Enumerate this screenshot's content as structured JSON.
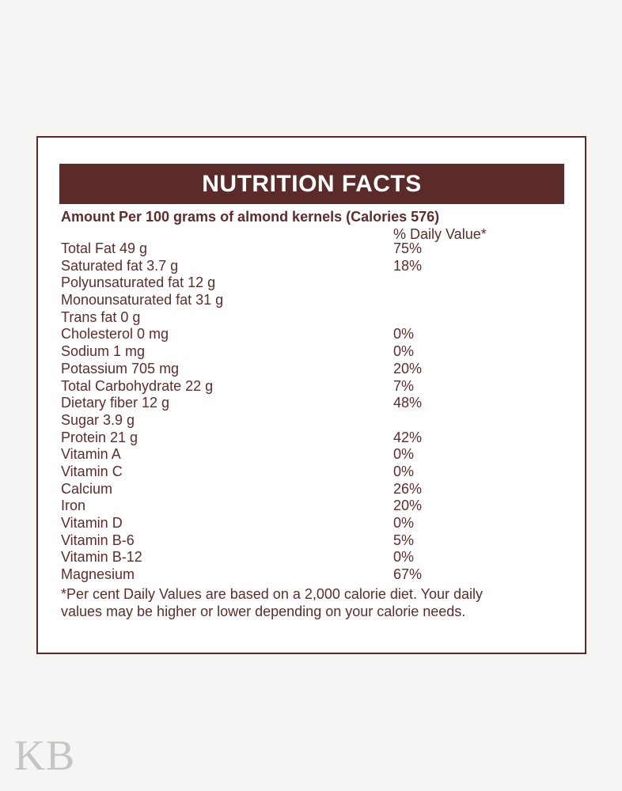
{
  "watermark": "KB",
  "colors": {
    "brand_brown": "#5a2b28",
    "text_brown": "#5e2d2a",
    "page_background": "#f5f5f4",
    "card_background": "#ffffff",
    "header_text": "#ffffff",
    "watermark_gray": "#c5c5c7"
  },
  "label": {
    "title": "NUTRITION FACTS",
    "amount_line": "Amount Per 100 grams of almond kernels (Calories 576)",
    "daily_value_header": "% Daily Value*",
    "rows": [
      {
        "name": "Total Fat 49 g",
        "dv": "75%"
      },
      {
        "name": "Saturated fat 3.7 g",
        "dv": "18%"
      },
      {
        "name": "Polyunsaturated fat 12 g",
        "dv": ""
      },
      {
        "name": "Monounsaturated fat 31 g",
        "dv": ""
      },
      {
        "name": "Trans fat 0 g",
        "dv": ""
      },
      {
        "name": "Cholesterol 0 mg",
        "dv": "0%"
      },
      {
        "name": "Sodium 1 mg",
        "dv": "0%"
      },
      {
        "name": "Potassium 705 mg",
        "dv": "20%"
      },
      {
        "name": "Total Carbohydrate 22 g",
        "dv": "7%"
      },
      {
        "name": "Dietary fiber 12 g",
        "dv": "48%"
      },
      {
        "name": "Sugar 3.9 g",
        "dv": ""
      },
      {
        "name": "Protein 21 g",
        "dv": "42%"
      },
      {
        "name": "Vitamin A",
        "dv": "0%"
      },
      {
        "name": "Vitamin C",
        "dv": "0%"
      },
      {
        "name": "Calcium",
        "dv": "26%"
      },
      {
        "name": "Iron",
        "dv": "20%"
      },
      {
        "name": "Vitamin D",
        "dv": "0%"
      },
      {
        "name": "Vitamin B-6",
        "dv": "5%"
      },
      {
        "name": "Vitamin B-12",
        "dv": "0%"
      },
      {
        "name": "Magnesium",
        "dv": "67%"
      }
    ],
    "footnote_lines": [
      "*Per cent Daily Values are based on a 2,000 calorie diet. Your daily",
      "values may be higher or lower depending on your calorie needs."
    ]
  }
}
